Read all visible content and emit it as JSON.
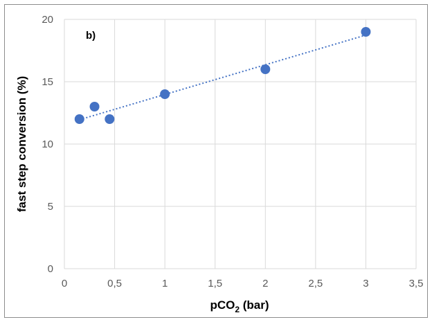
{
  "chart_data": {
    "type": "scatter",
    "title": "",
    "annotation": "b)",
    "xlabel_main": "pCO",
    "xlabel_sub": "2",
    "xlabel_unit": " (bar)",
    "ylabel": "fast step conversion (%)",
    "xlim": [
      0,
      3.5
    ],
    "ylim": [
      0,
      20
    ],
    "x_ticks": [
      "0",
      "0,5",
      "1",
      "1,5",
      "2",
      "2,5",
      "3",
      "3,5"
    ],
    "y_ticks": [
      "0",
      "5",
      "10",
      "15",
      "20"
    ],
    "grid": "vertical and horizontal major gridlines",
    "legend": "none",
    "series": [
      {
        "points": [
          {
            "x": 0.15,
            "y": 12
          },
          {
            "x": 0.3,
            "y": 13
          },
          {
            "x": 0.45,
            "y": 12
          },
          {
            "x": 1.0,
            "y": 14
          },
          {
            "x": 2.0,
            "y": 16
          },
          {
            "x": 3.0,
            "y": 19
          }
        ],
        "color": "#4472c4"
      }
    ],
    "trendline": {
      "type": "linear",
      "style": "dotted",
      "color": "#4472c4",
      "x_start": 0.15,
      "x_end": 3.0
    }
  }
}
